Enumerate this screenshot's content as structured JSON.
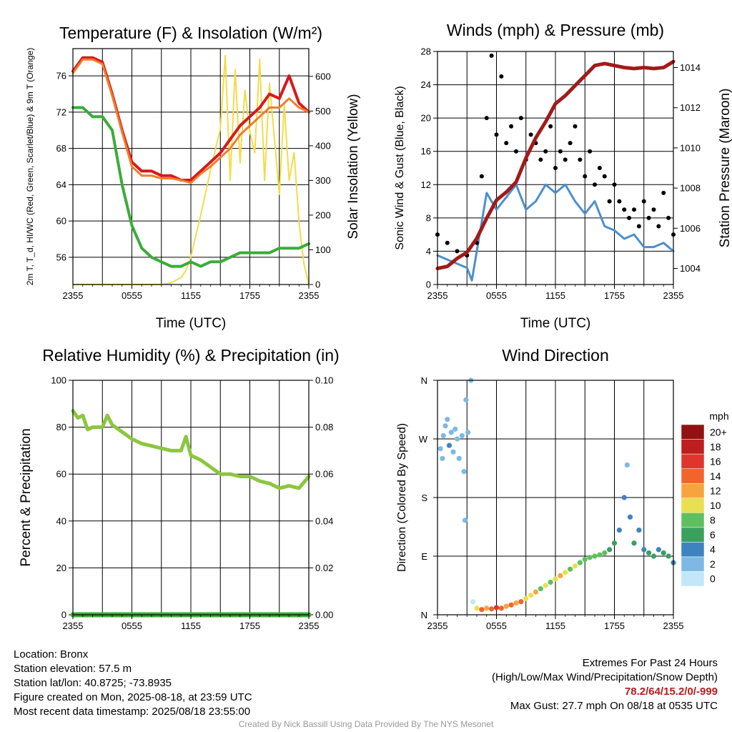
{
  "chart_data": [
    {
      "type": "line",
      "title": "Temperature (F) & Insolation (W/m²)",
      "xlabel": "Time (UTC)",
      "ylabel_left": "2m T, T_d, HI/WC (Red, Green, Scarlet/Blue) & 9m T (Orange)",
      "ylabel_right": "Solar Insolation (Yellow)",
      "x_ticks": [
        "2355",
        "0555",
        "1155",
        "1755",
        "2355"
      ],
      "ylim_left": [
        53,
        79
      ],
      "y_ticks_left": [
        56,
        60,
        64,
        68,
        72,
        76
      ],
      "ylim_right": [
        0,
        680
      ],
      "y_ticks_right": [
        0,
        100,
        200,
        300,
        400,
        500,
        600
      ],
      "series": [
        {
          "name": "T",
          "color": "#d7191c",
          "axis": "left",
          "x": [
            0,
            1,
            2,
            3,
            4,
            5,
            6,
            7,
            8,
            9,
            10,
            11,
            12,
            13,
            14,
            15,
            16,
            17,
            18,
            19,
            20,
            21,
            22,
            23,
            24
          ],
          "y": [
            76.5,
            78,
            78,
            77.5,
            74,
            70,
            66.5,
            65.5,
            65.5,
            65,
            65,
            64.5,
            64.5,
            65.5,
            66.5,
            67.5,
            69,
            70.5,
            71.5,
            72.5,
            74,
            73.5,
            76,
            73,
            72
          ]
        },
        {
          "name": "Td",
          "color": "#3aac3a",
          "axis": "left",
          "x": [
            0,
            1,
            2,
            3,
            4,
            5,
            6,
            7,
            8,
            9,
            10,
            11,
            12,
            13,
            14,
            15,
            16,
            17,
            18,
            19,
            20,
            21,
            22,
            23,
            24
          ],
          "y": [
            72.5,
            72.5,
            71.5,
            71.5,
            70,
            64,
            59.5,
            57,
            56,
            55.5,
            55,
            55,
            55.5,
            55,
            55.5,
            55.5,
            56,
            56.5,
            56.5,
            56.5,
            56.5,
            57,
            57,
            57,
            57.5
          ]
        },
        {
          "name": "9m T",
          "color": "#f07d2b",
          "axis": "left",
          "x": [
            0,
            1,
            2,
            3,
            4,
            5,
            6,
            7,
            8,
            9,
            10,
            11,
            12,
            13,
            14,
            15,
            16,
            17,
            18,
            19,
            20,
            21,
            22,
            23,
            24
          ],
          "y": [
            76.3,
            77.8,
            77.8,
            77.3,
            73.8,
            69.8,
            66,
            65,
            65,
            64.7,
            64.7,
            64.5,
            64.2,
            65.2,
            66,
            67,
            68,
            69.5,
            70.5,
            71.5,
            72.5,
            72.5,
            73.5,
            72.5,
            72
          ]
        },
        {
          "name": "Solar",
          "color": "#f2dc4a",
          "axis": "right",
          "x": [
            0,
            1,
            2,
            3,
            4,
            5,
            6,
            7,
            8,
            9,
            10,
            11,
            11.5,
            12,
            13,
            14,
            15,
            15.5,
            16,
            16.5,
            17,
            17.5,
            18,
            18.5,
            19,
            19.5,
            20,
            20.5,
            21,
            21.5,
            22,
            22.5,
            23,
            23.5,
            24
          ],
          "y": [
            0,
            0,
            0,
            0,
            0,
            0,
            0,
            0,
            0,
            0,
            5,
            20,
            40,
            80,
            200,
            330,
            450,
            660,
            300,
            620,
            350,
            560,
            440,
            380,
            650,
            300,
            580,
            420,
            260,
            520,
            300,
            380,
            180,
            60,
            0
          ]
        }
      ]
    },
    {
      "type": "line",
      "title": "Winds (mph) & Pressure (mb)",
      "xlabel": "Time (UTC)",
      "ylabel_left": "Sonic Wind & Gust (Blue, Black)",
      "ylabel_right": "Station Pressure (Maroon)",
      "x_ticks": [
        "2355",
        "0555",
        "1155",
        "1755",
        "2355"
      ],
      "ylim_left": [
        0,
        28
      ],
      "y_ticks_left": [
        0,
        4,
        8,
        12,
        16,
        20,
        24,
        28
      ],
      "ylim_right": [
        1003.2,
        1014.8
      ],
      "y_ticks_right": [
        1004,
        1006,
        1008,
        1010,
        1012,
        1014
      ],
      "series": [
        {
          "name": "Wind",
          "color": "#4d8fcc",
          "axis": "left",
          "x": [
            0,
            1,
            2,
            3,
            3.5,
            4,
            5,
            6,
            7,
            8,
            9,
            10,
            11,
            12,
            13,
            14,
            15,
            16,
            17,
            18,
            19,
            20,
            21,
            22,
            23,
            24
          ],
          "y": [
            3.5,
            3,
            2.5,
            2,
            0.5,
            4,
            11,
            9,
            10.5,
            12,
            9,
            10,
            12,
            11,
            12,
            10,
            8.5,
            10,
            7,
            6.5,
            5.5,
            6,
            4.5,
            4.5,
            5,
            4
          ]
        },
        {
          "name": "Gust",
          "color": "#000000",
          "axis": "left",
          "x": [
            0,
            1,
            2,
            3,
            4,
            4.5,
            5,
            5.5,
            6,
            6.5,
            7,
            7.5,
            8,
            8.5,
            9,
            9.5,
            10,
            10.5,
            11,
            11.5,
            12,
            12.5,
            13,
            13.5,
            14,
            14.5,
            15,
            15.5,
            16,
            16.5,
            17,
            17.5,
            18,
            18.5,
            19,
            19.5,
            20,
            20.5,
            21,
            21.5,
            22,
            22.5,
            23,
            23.5,
            24
          ],
          "y": [
            6,
            5,
            4,
            3.5,
            5,
            13,
            20,
            27.5,
            18,
            25,
            17,
            19,
            16,
            20,
            15,
            18,
            17,
            15,
            16,
            19,
            14,
            16,
            15,
            17,
            19,
            15,
            13,
            16,
            12,
            14,
            13,
            10,
            12,
            10,
            9,
            8,
            9,
            7,
            10,
            8,
            9,
            7,
            11,
            8,
            6
          ]
        },
        {
          "name": "Pressure",
          "color": "#a11a1a",
          "axis": "right",
          "x": [
            0,
            1,
            2,
            3,
            4,
            5,
            6,
            7,
            8,
            9,
            10,
            11,
            12,
            13,
            14,
            15,
            16,
            17,
            18,
            19,
            20,
            21,
            22,
            23,
            24
          ],
          "y": [
            1004,
            1004.1,
            1004.5,
            1004.8,
            1005.5,
            1006.5,
            1007.4,
            1007.8,
            1008.3,
            1009.5,
            1010.5,
            1011.3,
            1012.2,
            1012.6,
            1013.1,
            1013.6,
            1014.1,
            1014.2,
            1014.1,
            1014,
            1013.95,
            1014,
            1013.95,
            1014,
            1014.3
          ]
        }
      ]
    },
    {
      "type": "line",
      "title": "Relative Humidity (%) & Precipitation (in)",
      "xlabel": "",
      "ylabel_left": "Percent & Precipitation",
      "x_ticks": [
        "2355",
        "0555",
        "1155",
        "1755",
        "2355"
      ],
      "ylim_left": [
        0,
        100
      ],
      "y_ticks_left": [
        0,
        20,
        40,
        60,
        80,
        100
      ],
      "ylim_right": [
        0,
        0.1
      ],
      "y_ticks_right": [
        "0.00",
        "0.02",
        "0.04",
        "0.06",
        "0.08",
        "0.10"
      ],
      "series": [
        {
          "name": "RH",
          "color": "#8cc63f",
          "axis": "left",
          "x": [
            0,
            0.5,
            1,
            1.5,
            2,
            3,
            3.5,
            4,
            5,
            6,
            7,
            8,
            9,
            10,
            11,
            11.5,
            12,
            13,
            14,
            15,
            16,
            17,
            18,
            19,
            20,
            21,
            22,
            23,
            24
          ],
          "y": [
            87,
            84,
            85,
            79,
            80,
            80,
            85,
            81,
            78,
            75,
            73,
            72,
            71,
            70,
            70,
            76,
            68,
            66,
            63,
            60,
            60,
            59,
            59,
            57,
            56,
            54,
            55,
            54,
            59
          ]
        },
        {
          "name": "Precipitation",
          "color": "#3aac3a",
          "axis": "right",
          "x": [
            0,
            24
          ],
          "y": [
            0,
            0
          ]
        }
      ]
    },
    {
      "type": "scatter",
      "title": "Wind Direction",
      "ylabel_left": "Direction (Colored By Speed)",
      "x_ticks": [
        "2355",
        "0555",
        "1155",
        "1755",
        "2355"
      ],
      "y_ticks": [
        "N",
        "E",
        "S",
        "W",
        "N"
      ],
      "ylim": [
        0,
        360
      ],
      "colorbar_title": "mph",
      "colorbar_labels": [
        "0",
        "2",
        "4",
        "6",
        "8",
        "10",
        "12",
        "14",
        "16",
        "18",
        "20+"
      ],
      "colorbar_colors": [
        "#c3e6f9",
        "#7db9e4",
        "#3f83be",
        "#3aa060",
        "#5fbf5f",
        "#e8df52",
        "#f7a43f",
        "#f1642c",
        "#e0352b",
        "#be1e1e",
        "#921212"
      ],
      "points": [
        {
          "x": 0.3,
          "y": 255,
          "s": 2
        },
        {
          "x": 0.5,
          "y": 240,
          "s": 1
        },
        {
          "x": 0.6,
          "y": 275,
          "s": 2
        },
        {
          "x": 0.8,
          "y": 290,
          "s": 1
        },
        {
          "x": 1,
          "y": 300,
          "s": 1
        },
        {
          "x": 1.2,
          "y": 260,
          "s": 3
        },
        {
          "x": 1.4,
          "y": 280,
          "s": 2
        },
        {
          "x": 1.6,
          "y": 250,
          "s": 1
        },
        {
          "x": 1.8,
          "y": 285,
          "s": 2
        },
        {
          "x": 2,
          "y": 270,
          "s": 1
        },
        {
          "x": 2.2,
          "y": 240,
          "s": 2
        },
        {
          "x": 2.5,
          "y": 275,
          "s": 1
        },
        {
          "x": 2.7,
          "y": 220,
          "s": 1
        },
        {
          "x": 2.8,
          "y": 145,
          "s": 1
        },
        {
          "x": 2.9,
          "y": 330,
          "s": 1
        },
        {
          "x": 3.1,
          "y": 280,
          "s": 2
        },
        {
          "x": 3.4,
          "y": 360,
          "s": 2
        },
        {
          "x": 3.6,
          "y": 20,
          "s": 0
        },
        {
          "x": 4,
          "y": 10,
          "s": 10
        },
        {
          "x": 4.5,
          "y": 8,
          "s": 14
        },
        {
          "x": 5,
          "y": 10,
          "s": 12
        },
        {
          "x": 5.5,
          "y": 9,
          "s": 14
        },
        {
          "x": 6,
          "y": 11,
          "s": 15
        },
        {
          "x": 6.5,
          "y": 10,
          "s": 13
        },
        {
          "x": 7,
          "y": 13,
          "s": 12
        },
        {
          "x": 7.5,
          "y": 15,
          "s": 14
        },
        {
          "x": 8,
          "y": 18,
          "s": 11
        },
        {
          "x": 8.5,
          "y": 20,
          "s": 13
        },
        {
          "x": 9,
          "y": 25,
          "s": 10
        },
        {
          "x": 9.5,
          "y": 30,
          "s": 9
        },
        {
          "x": 10,
          "y": 35,
          "s": 11
        },
        {
          "x": 10.5,
          "y": 40,
          "s": 8
        },
        {
          "x": 11,
          "y": 45,
          "s": 10
        },
        {
          "x": 11.5,
          "y": 50,
          "s": 8
        },
        {
          "x": 12,
          "y": 55,
          "s": 9
        },
        {
          "x": 12.5,
          "y": 60,
          "s": 11
        },
        {
          "x": 13,
          "y": 65,
          "s": 10
        },
        {
          "x": 13.5,
          "y": 70,
          "s": 8
        },
        {
          "x": 14,
          "y": 75,
          "s": 9
        },
        {
          "x": 14.5,
          "y": 80,
          "s": 8
        },
        {
          "x": 15,
          "y": 85,
          "s": 7
        },
        {
          "x": 15.5,
          "y": 88,
          "s": 8
        },
        {
          "x": 16,
          "y": 90,
          "s": 7
        },
        {
          "x": 16.5,
          "y": 92,
          "s": 8
        },
        {
          "x": 17,
          "y": 95,
          "s": 7
        },
        {
          "x": 17.5,
          "y": 100,
          "s": 6
        },
        {
          "x": 18,
          "y": 110,
          "s": 5
        },
        {
          "x": 18.5,
          "y": 130,
          "s": 4
        },
        {
          "x": 19,
          "y": 180,
          "s": 3
        },
        {
          "x": 19.3,
          "y": 230,
          "s": 2
        },
        {
          "x": 19.6,
          "y": 150,
          "s": 4
        },
        {
          "x": 20,
          "y": 110,
          "s": 5
        },
        {
          "x": 20.5,
          "y": 130,
          "s": 3
        },
        {
          "x": 21,
          "y": 100,
          "s": 4
        },
        {
          "x": 21.5,
          "y": 95,
          "s": 6
        },
        {
          "x": 22,
          "y": 90,
          "s": 5
        },
        {
          "x": 22.5,
          "y": 100,
          "s": 4
        },
        {
          "x": 23,
          "y": 95,
          "s": 6
        },
        {
          "x": 23.5,
          "y": 90,
          "s": 5
        },
        {
          "x": 24,
          "y": 80,
          "s": 4
        }
      ]
    }
  ],
  "info": {
    "location": "Location: Bronx",
    "elevation": "Station elevation: 57.5 m",
    "latlon": "Station lat/lon: 40.8725; -73.8935",
    "created": "Figure created on Mon, 2025-08-18, at 23:59 UTC",
    "recent": "Most recent data timestamp: 2025/08/18 23:55:00"
  },
  "extremes": {
    "title": "Extremes For Past 24 Hours",
    "subtitle": "(High/Low/Max Wind/Precipitation/Snow Depth)",
    "values": "78.2/64/15.2/0/-999",
    "max_gust": "Max Gust: 27.7 mph On 08/18 at 0535 UTC"
  },
  "credit": "Created By Nick Bassill Using Data Provided By The NYS Mesonet"
}
